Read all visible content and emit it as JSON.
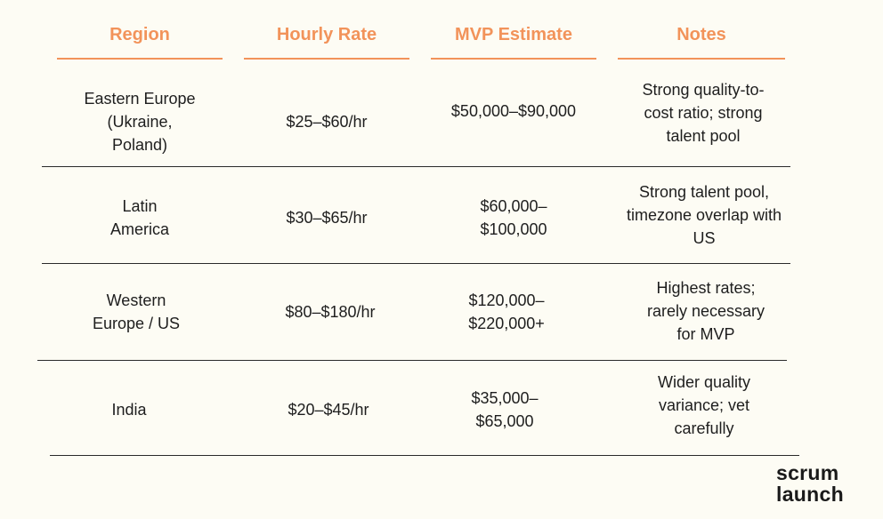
{
  "table": {
    "headers": {
      "region": "Region",
      "hourly_rate": "Hourly Rate",
      "mvp_estimate": "MVP Estimate",
      "notes": "Notes"
    },
    "rows": [
      {
        "region": "Eastern Europe\n(Ukraine,\nPoland)",
        "hourly_rate": "$25–$60/hr",
        "mvp_estimate": "$50,000–$90,000",
        "notes": "Strong quality-to-\ncost ratio; strong\ntalent pool"
      },
      {
        "region": "Latin\nAmerica",
        "hourly_rate": "$30–$65/hr",
        "mvp_estimate": "$60,000–\n$100,000",
        "notes": "Strong talent pool,\ntimezone overlap with\nUS"
      },
      {
        "region": "Western\nEurope / US",
        "hourly_rate": "$80–$180/hr",
        "mvp_estimate": "$120,000–\n$220,000+",
        "notes": "Highest rates;\nrarely necessary\nfor MVP"
      },
      {
        "region": "India",
        "hourly_rate": "$20–$45/hr",
        "mvp_estimate": "$35,000–\n$65,000",
        "notes": "Wider quality\nvariance; vet\ncarefully"
      }
    ]
  },
  "logo": {
    "line1": "scrum",
    "line2": "launch"
  }
}
